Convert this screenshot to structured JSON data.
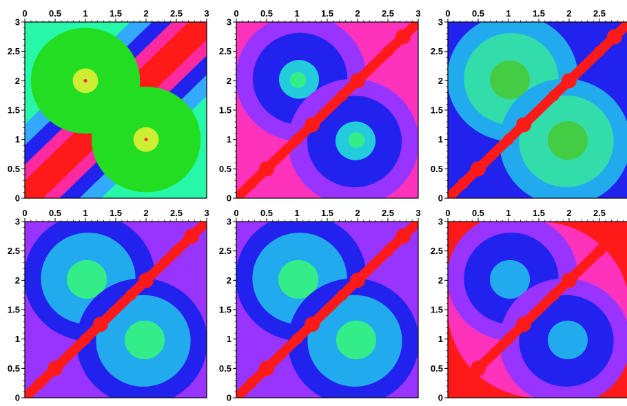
{
  "chart_data": [
    {
      "type": "heatmap",
      "panel": "top-left",
      "x": {
        "range": [
          0,
          3
        ],
        "ticks": [
          "0",
          "0.5",
          "1",
          "1.5",
          "2",
          "2.5",
          "3"
        ],
        "position": "top"
      },
      "y": {
        "range": [
          0,
          3
        ],
        "ticks": [
          "0",
          "0.5",
          "1",
          "1.5",
          "2",
          "2.5",
          "3"
        ]
      },
      "background": "#26f7a8",
      "features": [
        {
          "kind": "diagonal-bands",
          "colors": [
            "#33aaff",
            "#2222ee",
            "#ff2aa0",
            "#ff1a1a"
          ]
        },
        {
          "kind": "attractor",
          "x": 1,
          "y": 2,
          "colors": [
            "#22dd22",
            "#ccee33",
            "#ff3333"
          ]
        },
        {
          "kind": "attractor",
          "x": 2,
          "y": 1,
          "colors": [
            "#22dd22",
            "#ccee33",
            "#ff3333"
          ]
        }
      ]
    },
    {
      "type": "heatmap",
      "panel": "top-middle",
      "x": {
        "range": [
          0,
          3
        ],
        "ticks": [
          "0",
          "0.5",
          "1",
          "1.5",
          "2",
          "2.5",
          "3"
        ],
        "position": "top"
      },
      "y": {
        "range": [
          0,
          3
        ],
        "ticks": [
          "0",
          "0.5",
          "1",
          "1.5",
          "2",
          "2.5",
          "3"
        ]
      },
      "background": "#ff33bb",
      "features": [
        {
          "kind": "basin",
          "x": 1,
          "y": 2,
          "colors": [
            "#9933ff",
            "#2222ee",
            "#22ccdd",
            "#33ee88"
          ]
        },
        {
          "kind": "basin",
          "x": 2,
          "y": 1,
          "colors": [
            "#9933ff",
            "#2222ee",
            "#22ccdd",
            "#33ee88"
          ]
        },
        {
          "kind": "diagonal-ridge",
          "color": "#ff1a1a"
        }
      ]
    },
    {
      "type": "heatmap",
      "panel": "top-right",
      "x": {
        "range": [
          0,
          3
        ],
        "ticks": [
          "0",
          "0.5",
          "1",
          "1.5",
          "2",
          "2.5",
          "3"
        ],
        "position": "top"
      },
      "y": {
        "range": [
          0,
          3
        ],
        "ticks": [
          "0",
          "0.5",
          "1",
          "1.5",
          "2",
          "2.5",
          "3"
        ]
      },
      "background": "#2222ee",
      "features": [
        {
          "kind": "basin",
          "x": 1,
          "y": 2,
          "colors": [
            "#22aaee",
            "#33ddaa",
            "#44cc44"
          ]
        },
        {
          "kind": "basin",
          "x": 2,
          "y": 1,
          "colors": [
            "#22aaee",
            "#33ddaa",
            "#44cc44"
          ]
        },
        {
          "kind": "diagonal-ridge",
          "color": "#ff1a1a"
        }
      ]
    },
    {
      "type": "heatmap",
      "panel": "bottom-left",
      "x": {
        "range": [
          0,
          3
        ],
        "ticks": [
          "0",
          "0.5",
          "1",
          "1.5",
          "2",
          "2.5",
          "3"
        ],
        "position": "top"
      },
      "y": {
        "range": [
          0,
          3
        ],
        "ticks": [
          "0",
          "0.5",
          "1",
          "1.5",
          "2",
          "2.5",
          "3"
        ]
      },
      "background": "#9933ff",
      "features": [
        {
          "kind": "basin",
          "x": 1,
          "y": 2,
          "colors": [
            "#2222ee",
            "#22aaee",
            "#33ee88"
          ]
        },
        {
          "kind": "basin",
          "x": 2,
          "y": 1,
          "colors": [
            "#2222ee",
            "#22aaee",
            "#33ee88"
          ]
        },
        {
          "kind": "diagonal-ridge",
          "color": "#ff1a1a"
        }
      ]
    },
    {
      "type": "heatmap",
      "panel": "bottom-middle",
      "x": {
        "range": [
          0,
          3
        ],
        "ticks": [
          "0",
          "0.5",
          "1",
          "1.5",
          "2",
          "2.5",
          "3"
        ],
        "position": "top"
      },
      "y": {
        "range": [
          0,
          3
        ],
        "ticks": [
          "0",
          "0.5",
          "1",
          "1.5",
          "2",
          "2.5",
          "3"
        ]
      },
      "background": "#9933ff",
      "features": [
        {
          "kind": "basin",
          "x": 1,
          "y": 2,
          "colors": [
            "#2222ee",
            "#22aaee",
            "#33ee88"
          ]
        },
        {
          "kind": "basin",
          "x": 2,
          "y": 1,
          "colors": [
            "#2222ee",
            "#22aaee",
            "#33ee88"
          ]
        },
        {
          "kind": "diagonal-ridge",
          "color": "#ff1a1a"
        }
      ]
    },
    {
      "type": "heatmap",
      "panel": "bottom-right",
      "x": {
        "range": [
          0,
          3
        ],
        "ticks": [
          "0",
          "0.5",
          "1",
          "1.5",
          "2",
          "2.5",
          "3"
        ],
        "position": "top"
      },
      "y": {
        "range": [
          0,
          3
        ],
        "ticks": [
          "0",
          "0.5",
          "1",
          "1.5",
          "2",
          "2.5",
          "3"
        ]
      },
      "background": "#ff1a1a",
      "features": [
        {
          "kind": "region",
          "color": "#ff33bb"
        },
        {
          "kind": "basin",
          "x": 1,
          "y": 2,
          "colors": [
            "#9933ff",
            "#2222ee",
            "#22aaee"
          ]
        },
        {
          "kind": "basin",
          "x": 2,
          "y": 1,
          "colors": [
            "#9933ff",
            "#2222ee",
            "#22aaee"
          ]
        },
        {
          "kind": "diagonal-ridge",
          "color": "#ff1a1a"
        }
      ]
    }
  ]
}
